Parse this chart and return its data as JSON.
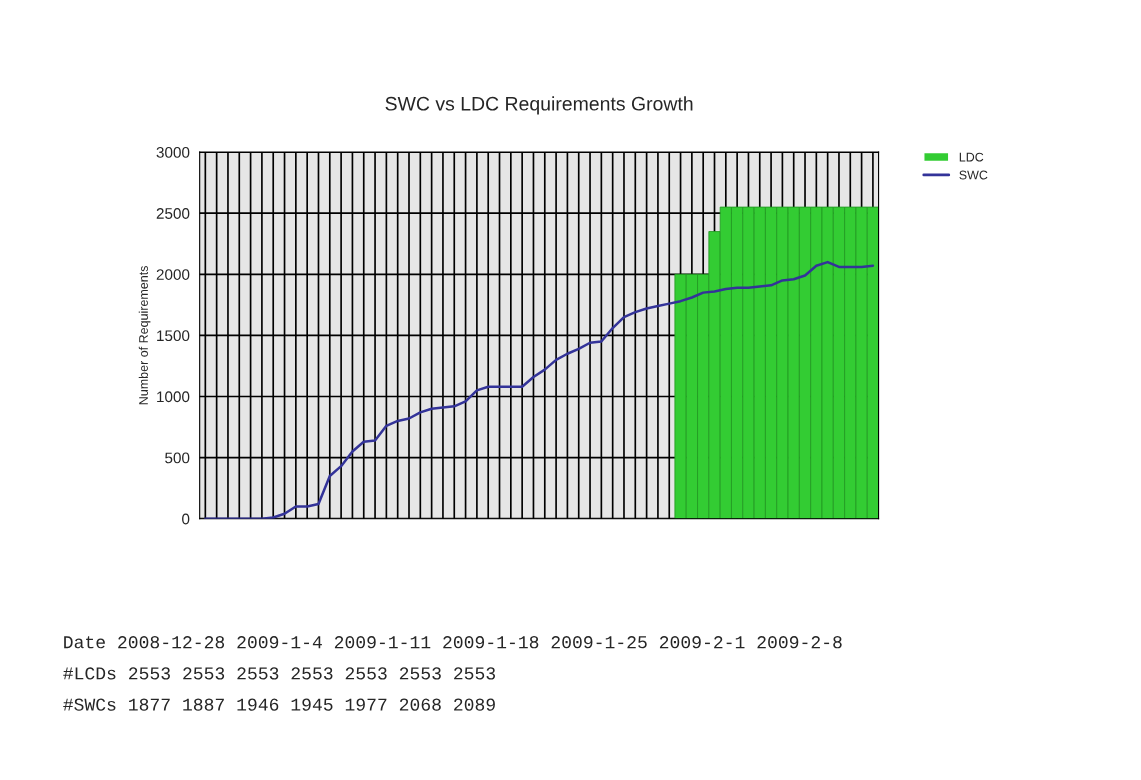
{
  "chart_data": {
    "type": "bar",
    "title": "SWC vs LDC Requirements Growth",
    "ylabel": "Number of Requirements",
    "categories": [
      null,
      null,
      null,
      null,
      null,
      null,
      null,
      null,
      null,
      null,
      null,
      null,
      null,
      null,
      null,
      null,
      null,
      null,
      null,
      null,
      null,
      null,
      null,
      null,
      null,
      null,
      null,
      null,
      null,
      null,
      null,
      null,
      null,
      null,
      null,
      null,
      null,
      null,
      null,
      null,
      null,
      null,
      null,
      null,
      null,
      null,
      null,
      null,
      null,
      null,
      null,
      null,
      null,
      null,
      null,
      null,
      null,
      null,
      null,
      null
    ],
    "series": [
      {
        "name": "LDC",
        "color": "#33cc33",
        "values": [
          null,
          null,
          null,
          null,
          null,
          null,
          null,
          null,
          null,
          null,
          null,
          null,
          null,
          null,
          null,
          null,
          null,
          null,
          null,
          null,
          null,
          null,
          null,
          null,
          null,
          null,
          null,
          null,
          null,
          null,
          null,
          null,
          null,
          null,
          null,
          null,
          null,
          null,
          null,
          null,
          null,
          null,
          2000,
          2000,
          2000,
          2350,
          2550,
          2550,
          2550,
          2550,
          2550,
          2550,
          2550,
          2550,
          2550,
          2550,
          2550,
          2550,
          2550,
          2550
        ]
      },
      {
        "name": "SWC",
        "type": "line",
        "color": "#333399",
        "values": [
          0,
          0,
          0,
          0,
          0,
          0,
          10,
          40,
          100,
          100,
          120,
          350,
          430,
          550,
          630,
          640,
          760,
          800,
          820,
          870,
          900,
          910,
          920,
          960,
          1050,
          1080,
          1080,
          1080,
          1080,
          1160,
          1220,
          1300,
          1350,
          1390,
          1440,
          1450,
          1560,
          1650,
          1690,
          1720,
          1740,
          1760,
          1780,
          1810,
          1850,
          1860,
          1880,
          1890,
          1890,
          1900,
          1910,
          1950,
          1960,
          1990,
          2070,
          2100,
          2060,
          2060,
          2060,
          2070
        ]
      }
    ],
    "ylim": [
      0,
      3000
    ],
    "yticks": [
      0,
      500,
      1000,
      1500,
      2000,
      2500,
      3000
    ],
    "grid": true,
    "legend": "top right",
    "annotations": [
      "Date 2008-12-28 2009-1-4 2009-1-11 2009-1-18 2009-1-25 2009-2-1 2009-2-8",
      "#LCDs 2553 2553 2553 2553 2553 2553 2553",
      "#SWCs 1877 1887 1946 1945 1977 2068 2089"
    ]
  }
}
